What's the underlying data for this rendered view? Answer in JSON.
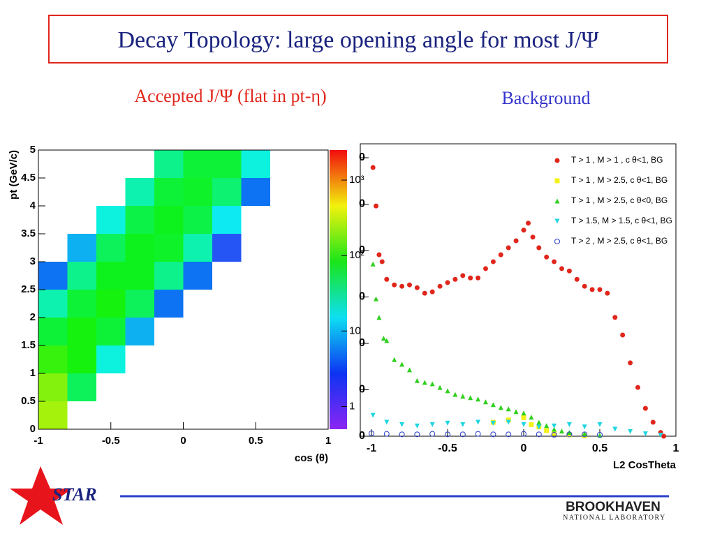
{
  "header": {
    "title": "Decay Topology: large opening angle for most J/Ψ"
  },
  "labels": {
    "left": "Accepted J/Ψ (flat in pt-η)",
    "right": "Background"
  },
  "chart_data": [
    {
      "type": "heatmap",
      "xlabel": "cos (θ)",
      "ylabel": "pt (GeV/c)",
      "x": [
        -0.9,
        -0.7,
        -0.5,
        -0.3,
        -0.1,
        0.1,
        0.3,
        0.5,
        0.7,
        0.9
      ],
      "y": [
        0.25,
        0.75,
        1.25,
        1.75,
        2.25,
        2.75,
        3.25,
        3.75,
        4.25,
        4.75
      ],
      "values": [
        [
          200,
          0,
          0,
          0,
          0,
          0,
          0,
          0,
          0,
          0
        ],
        [
          150,
          30,
          0,
          0,
          0,
          0,
          0,
          0,
          0,
          0
        ],
        [
          80,
          60,
          10,
          0,
          0,
          0,
          0,
          0,
          0,
          0
        ],
        [
          40,
          60,
          40,
          5,
          0,
          0,
          0,
          0,
          0,
          0
        ],
        [
          15,
          40,
          60,
          30,
          3,
          0,
          0,
          0,
          0,
          0
        ],
        [
          3,
          20,
          50,
          50,
          20,
          3,
          0,
          0,
          0,
          0
        ],
        [
          0,
          5,
          30,
          50,
          45,
          15,
          2,
          0,
          0,
          0
        ],
        [
          0,
          0,
          10,
          35,
          50,
          35,
          8,
          0,
          0,
          0
        ],
        [
          0,
          0,
          0,
          15,
          40,
          45,
          25,
          3,
          0,
          0
        ],
        [
          0,
          0,
          0,
          0,
          20,
          40,
          40,
          10,
          0,
          0
        ]
      ],
      "xlim": [
        -1,
        1
      ],
      "xticks": [
        -1,
        -0.5,
        0,
        0.5,
        1
      ],
      "ylim": [
        0,
        5
      ],
      "yticks": [
        0,
        0.5,
        1,
        1.5,
        2,
        2.5,
        3,
        3.5,
        4,
        4.5,
        5
      ],
      "zlim": [
        0.5,
        2500
      ],
      "zlog": true,
      "zticks": [
        1,
        10,
        {
          "value": 100,
          "label": "10²"
        },
        {
          "value": 1000,
          "label": "10³"
        }
      ]
    },
    {
      "type": "scatter",
      "xlabel": "L2 CosTheta",
      "legend": "upper right",
      "xlim": [
        -1,
        1
      ],
      "xticks": [
        -1,
        -0.5,
        0,
        0.5,
        1
      ],
      "ylim": [
        0,
        630
      ],
      "yticks": [
        {
          "value": 0,
          "label": "0"
        },
        {
          "value": 100,
          "label": "0"
        },
        {
          "value": 200,
          "label": "0"
        },
        {
          "value": 300,
          "label": "0"
        },
        {
          "value": 400,
          "label": "0"
        },
        {
          "value": 500,
          "label": "0"
        },
        {
          "value": 600,
          "label": "0"
        }
      ],
      "series": [
        {
          "name": "T > 1  , M > 1  , c θ<1, BG",
          "color": "#e0261c",
          "marker": "circle",
          "x": [
            -0.99,
            -0.97,
            -0.95,
            -0.93,
            -0.9,
            -0.85,
            -0.8,
            -0.75,
            -0.7,
            -0.65,
            -0.6,
            -0.55,
            -0.5,
            -0.45,
            -0.4,
            -0.35,
            -0.3,
            -0.25,
            -0.2,
            -0.15,
            -0.1,
            -0.05,
            0,
            0.03,
            0.06,
            0.1,
            0.15,
            0.2,
            0.25,
            0.3,
            0.35,
            0.4,
            0.45,
            0.5,
            0.55,
            0.6,
            0.65,
            0.7,
            0.75,
            0.8,
            0.85,
            0.9,
            0.92
          ],
          "values": [
            579,
            496,
            391,
            376,
            338,
            326,
            323,
            326,
            320,
            308,
            311,
            323,
            331,
            338,
            346,
            341,
            341,
            361,
            376,
            391,
            406,
            421,
            444,
            459,
            429,
            406,
            386,
            376,
            361,
            356,
            338,
            323,
            316,
            316,
            308,
            256,
            218,
            158,
            105,
            60,
            30,
            8,
            0
          ]
        },
        {
          "name": "T > 1  , M > 2.5, c θ<1, BG",
          "color": "#f2f21a",
          "marker": "square",
          "x": [
            -0.2,
            -0.1,
            0,
            0.05,
            0.1,
            0.15,
            0.2,
            0.3,
            0.4
          ],
          "values": [
            30,
            35,
            40,
            25,
            20,
            12,
            6,
            3,
            1
          ]
        },
        {
          "name": "T > 1  , M > 2.5, c θ<0, BG",
          "color": "#2fcf1e",
          "marker": "triangle",
          "x": [
            -0.99,
            -0.97,
            -0.95,
            -0.92,
            -0.9,
            -0.85,
            -0.8,
            -0.75,
            -0.7,
            -0.65,
            -0.6,
            -0.55,
            -0.5,
            -0.45,
            -0.4,
            -0.35,
            -0.3,
            -0.25,
            -0.2,
            -0.15,
            -0.1,
            -0.05,
            0,
            0.05,
            0.1,
            0.15,
            0.2,
            0.25,
            0.3,
            0.4,
            0.5
          ],
          "values": [
            371,
            296,
            256,
            211,
            206,
            165,
            155,
            143,
            120,
            116,
            113,
            105,
            98,
            90,
            86,
            83,
            80,
            74,
            68,
            62,
            59,
            53,
            50,
            41,
            30,
            23,
            15,
            11,
            8,
            5,
            2
          ]
        },
        {
          "name": "T > 1.5, M > 1.5, c θ<1, BG",
          "color": "#1ed6e0",
          "marker": "triangle-down",
          "x": [
            -0.99,
            -0.9,
            -0.8,
            -0.7,
            -0.6,
            -0.5,
            -0.4,
            -0.3,
            -0.2,
            -0.1,
            0,
            0.1,
            0.2,
            0.3,
            0.4,
            0.5,
            0.6,
            0.7,
            0.8,
            0.9
          ],
          "values": [
            45,
            30,
            25,
            22,
            25,
            28,
            25,
            30,
            28,
            30,
            25,
            20,
            22,
            25,
            20,
            25,
            15,
            10,
            5,
            2
          ]
        },
        {
          "name": "T > 2  , M > 2.5, c θ<1, BG",
          "color": "#2a3fc8",
          "marker": "open-circle",
          "x": [
            -1,
            -0.9,
            -0.8,
            -0.7,
            -0.6,
            -0.5,
            -0.4,
            -0.3,
            -0.2,
            -0.1,
            0,
            0.1,
            0.2,
            0.3,
            0.4,
            0.5
          ],
          "values": [
            6,
            5,
            4,
            4,
            5,
            4,
            4,
            5,
            4,
            4,
            5,
            4,
            3,
            4,
            4,
            3
          ]
        }
      ]
    }
  ],
  "footer": {
    "logo": "STAR",
    "lab": "BROOKHAVEN",
    "lab_sub": "NATIONAL LABORATORY"
  }
}
